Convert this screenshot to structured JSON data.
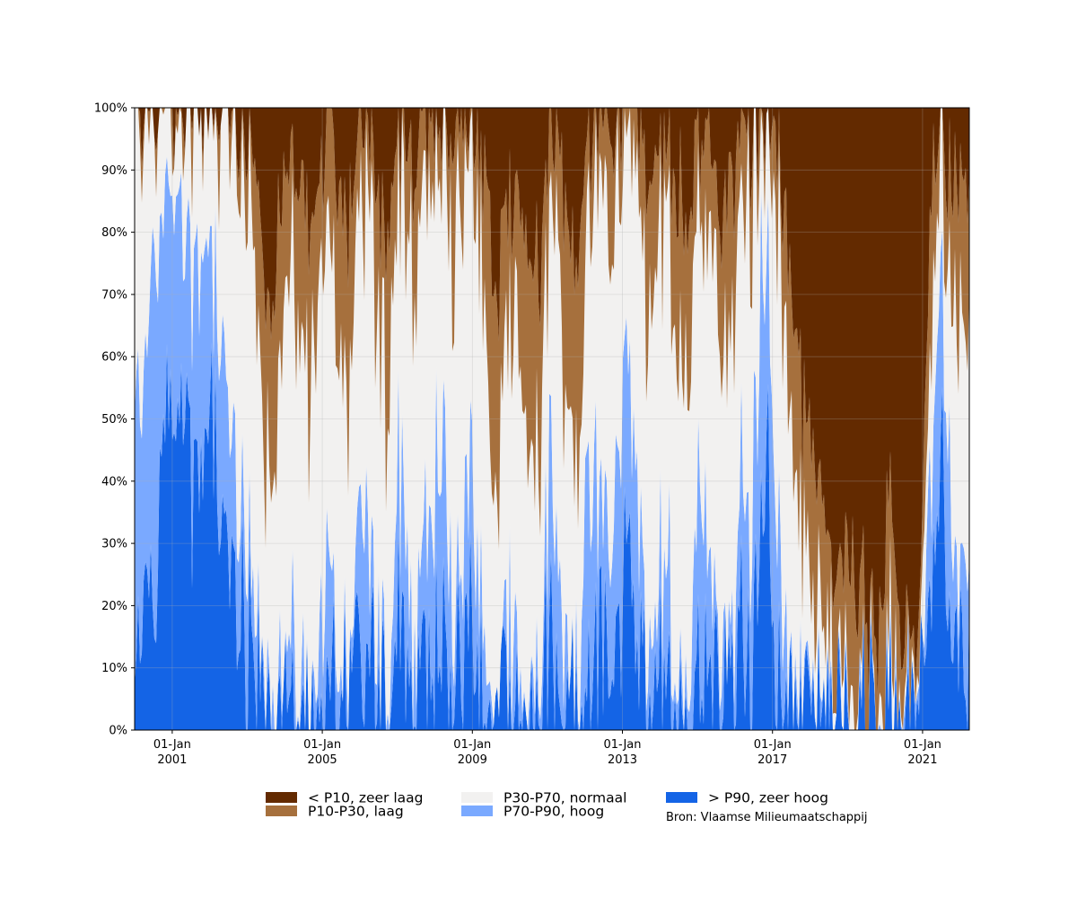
{
  "chart_data": {
    "type": "area",
    "stacking": "percent",
    "title": "",
    "xlabel": "",
    "ylabel": "",
    "x_range": [
      "2000-01-01",
      "2022-04-01"
    ],
    "ylim": [
      0,
      100
    ],
    "y_ticks": [
      0,
      10,
      20,
      30,
      40,
      50,
      60,
      70,
      80,
      90,
      100
    ],
    "y_tick_labels": [
      "0%",
      "10%",
      "20%",
      "30%",
      "40%",
      "50%",
      "60%",
      "70%",
      "80%",
      "90%",
      "100%"
    ],
    "x_ticks": [
      {
        "date": "2001-01-01",
        "label_top": "01-Jan",
        "label_bottom": "2001"
      },
      {
        "date": "2005-01-01",
        "label_top": "01-Jan",
        "label_bottom": "2005"
      },
      {
        "date": "2009-01-01",
        "label_top": "01-Jan",
        "label_bottom": "2009"
      },
      {
        "date": "2013-01-01",
        "label_top": "01-Jan",
        "label_bottom": "2013"
      },
      {
        "date": "2017-01-01",
        "label_top": "01-Jan",
        "label_bottom": "2017"
      },
      {
        "date": "2021-01-01",
        "label_top": "01-Jan",
        "label_bottom": "2021"
      }
    ],
    "grid": true,
    "legend_position": "bottom",
    "source": "Bron: Vlaamse Milieumaatschappij",
    "series": [
      {
        "name": "> P90, zeer hoog",
        "color": "#1464e6"
      },
      {
        "name": "P70-P90, hoog",
        "color": "#7aa9ff"
      },
      {
        "name": "P30-P70, normaal",
        "color": "#f2f1f0"
      },
      {
        "name": "P10-P30, laag",
        "color": "#a6703d"
      },
      {
        "name": "< P10, zeer laag",
        "color": "#632a00"
      }
    ],
    "x": [
      "2000-01",
      "2000-03",
      "2000-05",
      "2000-07",
      "2000-09",
      "2000-11",
      "2001-01",
      "2001-03",
      "2001-05",
      "2001-07",
      "2001-09",
      "2001-11",
      "2002-01",
      "2002-03",
      "2002-05",
      "2002-07",
      "2002-09",
      "2002-11",
      "2003-01",
      "2003-03",
      "2003-05",
      "2003-07",
      "2003-09",
      "2003-11",
      "2004-01",
      "2004-03",
      "2004-05",
      "2004-07",
      "2004-09",
      "2004-11",
      "2005-01",
      "2005-03",
      "2005-05",
      "2005-07",
      "2005-09",
      "2005-11",
      "2006-01",
      "2006-03",
      "2006-05",
      "2006-07",
      "2006-09",
      "2006-11",
      "2007-01",
      "2007-03",
      "2007-05",
      "2007-07",
      "2007-09",
      "2007-11",
      "2008-01",
      "2008-03",
      "2008-05",
      "2008-07",
      "2008-09",
      "2008-11",
      "2009-01",
      "2009-03",
      "2009-05",
      "2009-07",
      "2009-09",
      "2009-11",
      "2010-01",
      "2010-03",
      "2010-05",
      "2010-07",
      "2010-09",
      "2010-11",
      "2011-01",
      "2011-03",
      "2011-05",
      "2011-07",
      "2011-09",
      "2011-11",
      "2012-01",
      "2012-03",
      "2012-05",
      "2012-07",
      "2012-09",
      "2012-11",
      "2013-01",
      "2013-03",
      "2013-05",
      "2013-07",
      "2013-09",
      "2013-11",
      "2014-01",
      "2014-03",
      "2014-05",
      "2014-07",
      "2014-09",
      "2014-11",
      "2015-01",
      "2015-03",
      "2015-05",
      "2015-07",
      "2015-09",
      "2015-11",
      "2016-01",
      "2016-03",
      "2016-05",
      "2016-07",
      "2016-09",
      "2016-11",
      "2017-01",
      "2017-03",
      "2017-05",
      "2017-07",
      "2017-09",
      "2017-11",
      "2018-01",
      "2018-03",
      "2018-05",
      "2018-07",
      "2018-09",
      "2018-11",
      "2019-01",
      "2019-03",
      "2019-05",
      "2019-07",
      "2019-09",
      "2019-11",
      "2020-01",
      "2020-03",
      "2020-05",
      "2020-07",
      "2020-09",
      "2020-11",
      "2021-01",
      "2021-03",
      "2021-05",
      "2021-07",
      "2021-09",
      "2021-11",
      "2022-01",
      "2022-03"
    ],
    "cumulative_boundaries": {
      "p90_top": [
        5,
        25,
        20,
        15,
        40,
        50,
        55,
        45,
        55,
        40,
        35,
        50,
        45,
        40,
        30,
        25,
        20,
        20,
        15,
        8,
        3,
        2,
        2,
        2,
        3,
        5,
        3,
        2,
        2,
        3,
        8,
        5,
        3,
        2,
        2,
        3,
        10,
        8,
        5,
        2,
        1,
        3,
        20,
        15,
        5,
        5,
        8,
        10,
        12,
        20,
        8,
        5,
        5,
        15,
        10,
        8,
        3,
        1,
        1,
        3,
        5,
        3,
        2,
        2,
        2,
        3,
        15,
        8,
        3,
        2,
        2,
        5,
        20,
        15,
        10,
        8,
        10,
        15,
        30,
        20,
        10,
        5,
        3,
        5,
        10,
        8,
        5,
        3,
        3,
        8,
        15,
        10,
        5,
        3,
        3,
        5,
        10,
        15,
        8,
        20,
        40,
        45,
        10,
        5,
        3,
        2,
        2,
        2,
        3,
        2,
        1,
        1,
        1,
        1,
        1,
        1,
        1,
        1,
        1,
        1,
        2,
        1,
        1,
        1,
        1,
        1,
        3,
        20,
        40,
        45,
        20,
        5,
        8,
        10
      ],
      "p70_top": [
        45,
        55,
        60,
        75,
        80,
        85,
        90,
        85,
        80,
        75,
        70,
        80,
        75,
        70,
        60,
        50,
        40,
        35,
        30,
        15,
        8,
        5,
        5,
        5,
        10,
        15,
        12,
        8,
        5,
        10,
        25,
        20,
        15,
        8,
        5,
        10,
        35,
        30,
        20,
        10,
        5,
        12,
        45,
        40,
        20,
        15,
        25,
        35,
        40,
        50,
        30,
        20,
        20,
        40,
        35,
        25,
        10,
        3,
        3,
        10,
        20,
        15,
        8,
        5,
        5,
        10,
        45,
        30,
        15,
        8,
        5,
        15,
        50,
        40,
        30,
        25,
        30,
        40,
        60,
        50,
        35,
        15,
        10,
        15,
        30,
        25,
        15,
        10,
        10,
        25,
        45,
        35,
        20,
        10,
        10,
        15,
        30,
        40,
        25,
        50,
        75,
        80,
        40,
        20,
        10,
        5,
        3,
        3,
        5,
        4,
        2,
        2,
        2,
        2,
        2,
        2,
        2,
        2,
        2,
        2,
        5,
        3,
        2,
        2,
        2,
        2,
        8,
        40,
        65,
        70,
        40,
        15,
        20,
        25
      ],
      "p30_top": [
        95,
        98,
        98,
        99,
        99,
        99,
        99,
        99,
        99,
        99,
        99,
        99,
        99,
        99,
        98,
        97,
        95,
        92,
        90,
        70,
        50,
        40,
        45,
        55,
        65,
        75,
        70,
        60,
        55,
        65,
        80,
        78,
        70,
        55,
        50,
        62,
        85,
        82,
        75,
        60,
        55,
        68,
        90,
        88,
        80,
        75,
        82,
        88,
        92,
        95,
        85,
        75,
        78,
        90,
        88,
        80,
        60,
        40,
        35,
        55,
        70,
        65,
        55,
        45,
        40,
        50,
        85,
        80,
        65,
        50,
        40,
        55,
        92,
        90,
        85,
        80,
        82,
        88,
        95,
        92,
        85,
        70,
        60,
        70,
        82,
        80,
        72,
        65,
        62,
        75,
        88,
        85,
        75,
        60,
        55,
        60,
        75,
        85,
        80,
        92,
        97,
        98,
        88,
        70,
        55,
        40,
        30,
        25,
        20,
        18,
        12,
        8,
        8,
        10,
        12,
        10,
        8,
        6,
        5,
        6,
        15,
        12,
        8,
        5,
        4,
        5,
        20,
        65,
        88,
        90,
        78,
        55,
        60,
        65
      ],
      "p10_top": [
        100,
        100,
        100,
        100,
        100,
        100,
        100,
        100,
        100,
        100,
        100,
        100,
        100,
        100,
        100,
        100,
        100,
        99,
        98,
        92,
        80,
        70,
        72,
        80,
        88,
        92,
        90,
        85,
        82,
        88,
        95,
        94,
        90,
        80,
        76,
        85,
        97,
        96,
        92,
        84,
        80,
        88,
        99,
        98,
        95,
        92,
        95,
        98,
        99,
        100,
        97,
        92,
        93,
        98,
        98,
        96,
        88,
        75,
        70,
        82,
        90,
        88,
        82,
        75,
        72,
        80,
        97,
        95,
        90,
        80,
        72,
        82,
        99,
        98,
        97,
        95,
        96,
        98,
        100,
        99,
        97,
        90,
        85,
        90,
        95,
        94,
        90,
        85,
        84,
        90,
        98,
        97,
        92,
        85,
        82,
        84,
        92,
        97,
        95,
        99,
        100,
        100,
        97,
        88,
        75,
        65,
        55,
        50,
        45,
        40,
        30,
        25,
        22,
        28,
        30,
        28,
        22,
        18,
        15,
        18,
        35,
        30,
        20,
        15,
        12,
        15,
        45,
        88,
        97,
        98,
        92,
        82,
        85,
        88
      ]
    }
  }
}
